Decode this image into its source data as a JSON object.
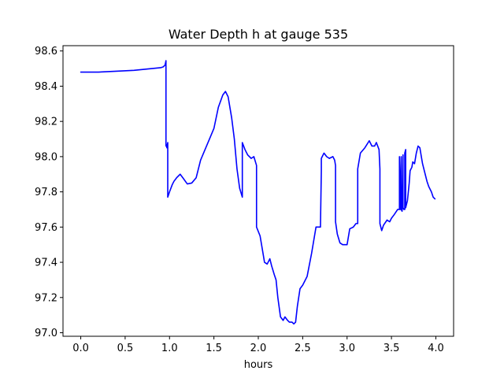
{
  "chart_data": {
    "type": "line",
    "title": "Water Depth h at gauge 535",
    "xlabel": "hours",
    "ylabel": "",
    "xlim": [
      -0.2,
      4.2
    ],
    "ylim": [
      96.98,
      98.63
    ],
    "xticks": [
      0.0,
      0.5,
      1.0,
      1.5,
      2.0,
      2.5,
      3.0,
      3.5,
      4.0
    ],
    "xtick_labels": [
      "0.0",
      "0.5",
      "1.0",
      "1.5",
      "2.0",
      "2.5",
      "3.0",
      "3.5",
      "4.0"
    ],
    "yticks": [
      97.0,
      97.2,
      97.4,
      97.6,
      97.8,
      98.0,
      98.2,
      98.4,
      98.6
    ],
    "ytick_labels": [
      "97.0",
      "97.2",
      "97.4",
      "97.6",
      "97.8",
      "98.0",
      "98.2",
      "98.4",
      "98.6"
    ],
    "grid": false,
    "series": [
      {
        "color": "#0000ff",
        "x": [
          0.0,
          0.2,
          0.4,
          0.6,
          0.7,
          0.8,
          0.9,
          0.93,
          0.95,
          0.96,
          0.96,
          0.965,
          0.97,
          0.98,
          0.98,
          1.0,
          1.03,
          1.05,
          1.08,
          1.12,
          1.15,
          1.2,
          1.25,
          1.3,
          1.35,
          1.4,
          1.45,
          1.5,
          1.55,
          1.6,
          1.63,
          1.66,
          1.7,
          1.73,
          1.76,
          1.79,
          1.82,
          1.82,
          1.85,
          1.88,
          1.92,
          1.95,
          1.98,
          1.98,
          2.02,
          2.05,
          2.07,
          2.1,
          2.13,
          2.15,
          2.18,
          2.2,
          2.22,
          2.25,
          2.28,
          2.3,
          2.33,
          2.35,
          2.38,
          2.4,
          2.42,
          2.44,
          2.47,
          2.5,
          2.55,
          2.6,
          2.65,
          2.7,
          2.71,
          2.71,
          2.74,
          2.77,
          2.8,
          2.84,
          2.86,
          2.87,
          2.87,
          2.89,
          2.92,
          2.95,
          3.0,
          3.03,
          3.07,
          3.1,
          3.12,
          3.12,
          3.15,
          3.2,
          3.25,
          3.28,
          3.31,
          3.33,
          3.36,
          3.37,
          3.37,
          3.39,
          3.41,
          3.45,
          3.48,
          3.5,
          3.53,
          3.57,
          3.59,
          3.59,
          3.6,
          3.61,
          3.61,
          3.62,
          3.63,
          3.63,
          3.64,
          3.65,
          3.65,
          3.66,
          3.66,
          3.67,
          3.68,
          3.7,
          3.71,
          3.73,
          3.74,
          3.76,
          3.78,
          3.8,
          3.82,
          3.85,
          3.88,
          3.9,
          3.92,
          3.95,
          3.97,
          3.99
        ],
        "y": [
          98.48,
          98.48,
          98.485,
          98.49,
          98.495,
          98.5,
          98.505,
          98.51,
          98.52,
          98.545,
          98.06,
          98.07,
          98.05,
          98.08,
          97.77,
          97.8,
          97.84,
          97.86,
          97.88,
          97.9,
          97.88,
          97.845,
          97.85,
          97.88,
          97.98,
          98.04,
          98.1,
          98.16,
          98.28,
          98.35,
          98.37,
          98.34,
          98.22,
          98.1,
          97.93,
          97.82,
          97.77,
          98.08,
          98.04,
          98.01,
          97.99,
          98.0,
          97.95,
          97.6,
          97.55,
          97.46,
          97.4,
          97.39,
          97.42,
          97.38,
          97.33,
          97.3,
          97.2,
          97.09,
          97.07,
          97.09,
          97.07,
          97.06,
          97.06,
          97.05,
          97.06,
          97.15,
          97.25,
          97.27,
          97.32,
          97.45,
          97.6,
          97.6,
          97.92,
          97.99,
          98.02,
          98.0,
          97.99,
          98.0,
          97.98,
          97.95,
          97.63,
          97.56,
          97.51,
          97.5,
          97.5,
          97.59,
          97.6,
          97.62,
          97.62,
          97.93,
          98.02,
          98.05,
          98.09,
          98.06,
          98.06,
          98.08,
          98.04,
          97.93,
          97.62,
          97.58,
          97.61,
          97.64,
          97.63,
          97.65,
          97.67,
          97.7,
          97.7,
          98.0,
          97.7,
          98.0,
          97.7,
          97.69,
          98.01,
          97.71,
          97.7,
          97.7,
          98.02,
          98.04,
          97.71,
          97.73,
          97.75,
          97.85,
          97.92,
          97.94,
          97.97,
          97.96,
          98.02,
          98.06,
          98.05,
          97.96,
          97.9,
          97.86,
          97.83,
          97.8,
          97.77,
          97.76
        ]
      }
    ]
  }
}
